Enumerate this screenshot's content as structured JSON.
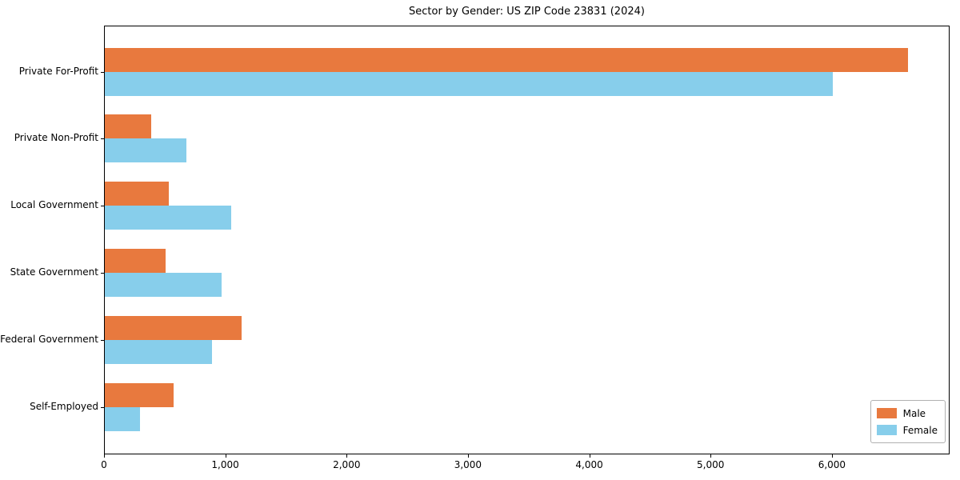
{
  "chart_data": {
    "type": "bar",
    "orientation": "horizontal",
    "title": "Sector by Gender: US ZIP Code 23831 (2024)",
    "categories": [
      "Private For-Profit",
      "Private Non-Profit",
      "Local Government",
      "State Government",
      "Federal Government",
      "Self-Employed"
    ],
    "series": [
      {
        "name": "Male",
        "color": "#e8793e",
        "values": [
          6620,
          380,
          530,
          500,
          1130,
          570
        ]
      },
      {
        "name": "Female",
        "color": "#87ceeb",
        "values": [
          6000,
          670,
          1040,
          960,
          880,
          290
        ]
      }
    ],
    "xlim": [
      0,
      6970
    ],
    "xticks": [
      0,
      1000,
      2000,
      3000,
      4000,
      5000,
      6000
    ],
    "xtick_labels": [
      "0",
      "1,000",
      "2,000",
      "3,000",
      "4,000",
      "5,000",
      "6,000"
    ],
    "xlabel": "",
    "ylabel": "",
    "grid": false,
    "legend_position": "lower right",
    "spine_box": true
  }
}
